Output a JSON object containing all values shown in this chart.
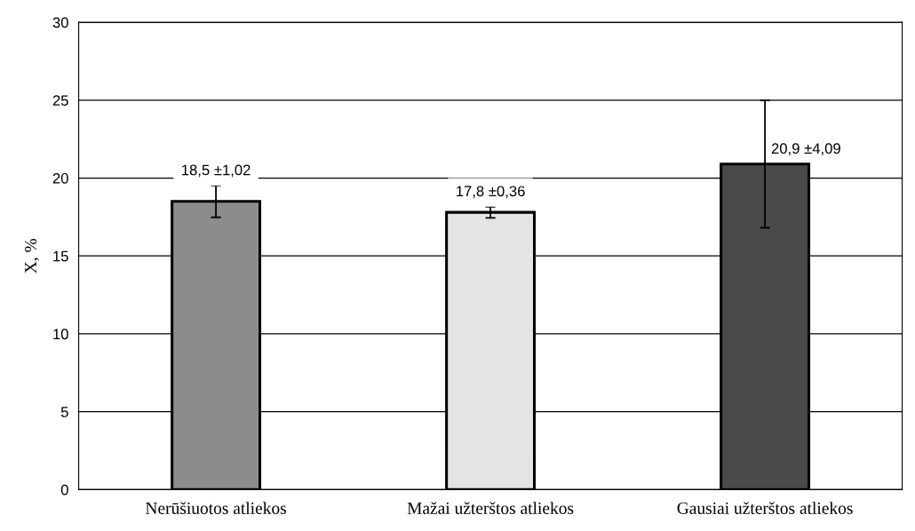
{
  "chart_data": {
    "type": "bar",
    "ylabel": "X, %",
    "categories": [
      "Nerūšiuotos atliekos",
      "Mažai užterštos atliekos",
      "Gausiai užterštos atliekos"
    ],
    "values": [
      18.5,
      17.8,
      20.9
    ],
    "errors": [
      1.02,
      0.36,
      4.09
    ],
    "colors": [
      "#8c8c8c",
      "#e4e4e4",
      "#4a4a4a"
    ],
    "value_labels": [
      "18,5 ±1,02",
      "17,8 ±0,36",
      "20,9 ±4,09"
    ],
    "ylim": [
      0,
      30
    ],
    "yticks": [
      0,
      5,
      10,
      15,
      20,
      25,
      30
    ],
    "grid": "y",
    "legend": false
  }
}
